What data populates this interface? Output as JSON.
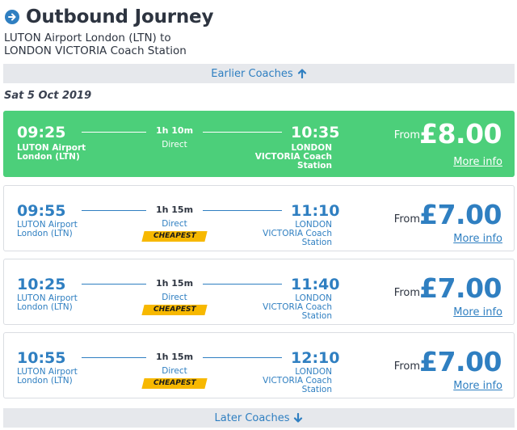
{
  "header": {
    "title": "Outbound Journey",
    "route_line1": "LUTON Airport London (LTN) to",
    "route_line2": "LONDON VICTORIA Coach Station"
  },
  "nav": {
    "earlier_label": "Earlier Coaches",
    "later_label": "Later Coaches"
  },
  "date_label": "Sat 5 Oct 2019",
  "journeys": [
    {
      "dep_time": "09:25",
      "arr_time": "10:35",
      "duration": "1h 10m",
      "stops": "Direct",
      "dep_station_1": "LUTON Airport",
      "dep_station_2": "London (LTN)",
      "arr_station_1": "LONDON",
      "arr_station_2": "VICTORIA Coach",
      "arr_station_3": "Station",
      "badge": "",
      "from_label": "From",
      "price": "£8.00",
      "more_info": "More info",
      "selected": true
    },
    {
      "dep_time": "09:55",
      "arr_time": "11:10",
      "duration": "1h 15m",
      "stops": "Direct",
      "dep_station_1": "LUTON Airport",
      "dep_station_2": "London (LTN)",
      "arr_station_1": "LONDON",
      "arr_station_2": "VICTORIA Coach",
      "arr_station_3": "Station",
      "badge": "CHEAPEST",
      "from_label": "From",
      "price": "£7.00",
      "more_info": "More info",
      "selected": false
    },
    {
      "dep_time": "10:25",
      "arr_time": "11:40",
      "duration": "1h 15m",
      "stops": "Direct",
      "dep_station_1": "LUTON Airport",
      "dep_station_2": "London (LTN)",
      "arr_station_1": "LONDON",
      "arr_station_2": "VICTORIA Coach",
      "arr_station_3": "Station",
      "badge": "CHEAPEST",
      "from_label": "From",
      "price": "£7.00",
      "more_info": "More info",
      "selected": false
    },
    {
      "dep_time": "10:55",
      "arr_time": "12:10",
      "duration": "1h 15m",
      "stops": "Direct",
      "dep_station_1": "LUTON Airport",
      "dep_station_2": "London (LTN)",
      "arr_station_1": "LONDON",
      "arr_station_2": "VICTORIA Coach",
      "arr_station_3": "Station",
      "badge": "CHEAPEST",
      "from_label": "From",
      "price": "£7.00",
      "more_info": "More info",
      "selected": false
    }
  ],
  "colors": {
    "accent": "#2f7fc1",
    "selected_bg": "#4ccf7a",
    "badge_bg": "#f7b800",
    "nav_bar_bg": "#e6e8ec"
  },
  "icons": {
    "header": "arrow-right-circle-icon",
    "earlier": "arrow-up-icon",
    "later": "arrow-down-icon"
  }
}
